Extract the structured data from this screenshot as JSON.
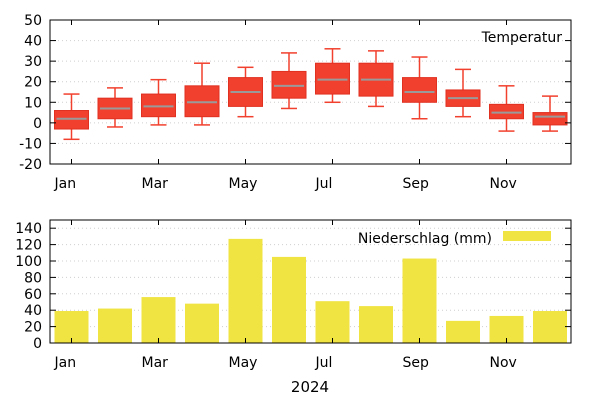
{
  "chart_data": [
    {
      "type": "box",
      "title": "",
      "legend": "Temperatur",
      "legend_position": "top-right",
      "color": "#f2402e",
      "median_color": "#9a9a9a",
      "ylim": [
        -20,
        50
      ],
      "yticks": [
        -20,
        -10,
        0,
        10,
        20,
        30,
        40,
        50
      ],
      "months": [
        1,
        2,
        3,
        4,
        5,
        6,
        7,
        8,
        9,
        10,
        11,
        12
      ],
      "xtick_months": [
        1,
        3,
        5,
        7,
        9,
        11
      ],
      "xtick_labels": [
        "Jan",
        "Mar",
        "May",
        "Jul",
        "Sep",
        "Nov"
      ],
      "series": [
        {
          "min": -8,
          "q1": -3,
          "median": 2,
          "q3": 6,
          "max": 14
        },
        {
          "min": -2,
          "q1": 2,
          "median": 7,
          "q3": 12,
          "max": 17
        },
        {
          "min": -1,
          "q1": 3,
          "median": 8,
          "q3": 14,
          "max": 21
        },
        {
          "min": -1,
          "q1": 3,
          "median": 10,
          "q3": 18,
          "max": 29
        },
        {
          "min": 3,
          "q1": 8,
          "median": 15,
          "q3": 22,
          "max": 27
        },
        {
          "min": 7,
          "q1": 12,
          "median": 18,
          "q3": 25,
          "max": 34
        },
        {
          "min": 10,
          "q1": 14,
          "median": 21,
          "q3": 29,
          "max": 36
        },
        {
          "min": 8,
          "q1": 13,
          "median": 21,
          "q3": 29,
          "max": 35
        },
        {
          "min": 2,
          "q1": 10,
          "median": 15,
          "q3": 22,
          "max": 32
        },
        {
          "min": 3,
          "q1": 8,
          "median": 12,
          "q3": 16,
          "max": 26
        },
        {
          "min": -4,
          "q1": 2,
          "median": 5,
          "q3": 9,
          "max": 18
        },
        {
          "min": -4,
          "q1": -1,
          "median": 3,
          "q3": 5,
          "max": 13
        }
      ]
    },
    {
      "type": "bar",
      "title": "",
      "legend": "Niederschlag (mm)",
      "legend_position": "top-right",
      "color": "#f0e442",
      "ylim": [
        0,
        150
      ],
      "yticks": [
        0,
        20,
        40,
        60,
        80,
        100,
        120,
        140
      ],
      "months": [
        1,
        2,
        3,
        4,
        5,
        6,
        7,
        8,
        9,
        10,
        11,
        12
      ],
      "xtick_months": [
        1,
        3,
        5,
        7,
        9,
        11
      ],
      "xtick_labels": [
        "Jan",
        "Mar",
        "May",
        "Jul",
        "Sep",
        "Nov"
      ],
      "values": [
        39,
        42,
        56,
        48,
        127,
        105,
        51,
        45,
        103,
        27,
        33,
        39
      ],
      "xlabel": "2024"
    }
  ]
}
